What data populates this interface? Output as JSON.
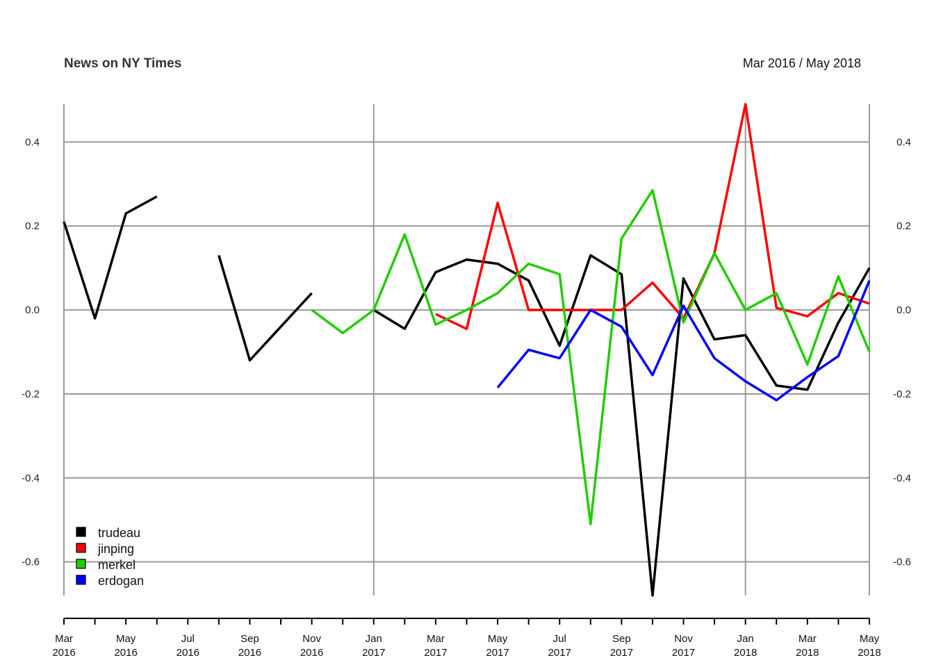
{
  "chart_data": {
    "type": "line",
    "title": "News on NY Times",
    "range_label": "Mar 2016 / May 2018",
    "xlabel": "",
    "ylabel": "",
    "ylim": [
      -0.68,
      0.49
    ],
    "grid": true,
    "legend_position": "bottom-left",
    "x": [
      "2016-03",
      "2016-04",
      "2016-05",
      "2016-06",
      "2016-07",
      "2016-08",
      "2016-09",
      "2016-10",
      "2016-11",
      "2016-12",
      "2017-01",
      "2017-02",
      "2017-03",
      "2017-04",
      "2017-05",
      "2017-06",
      "2017-07",
      "2017-08",
      "2017-09",
      "2017-10",
      "2017-11",
      "2017-12",
      "2018-01",
      "2018-02",
      "2018-03",
      "2018-04",
      "2018-05"
    ],
    "x_major_labels": [
      {
        "month": "Mar",
        "year": "2016",
        "i": 0
      },
      {
        "month": "May",
        "year": "2016",
        "i": 2
      },
      {
        "month": "Jul",
        "year": "2016",
        "i": 4
      },
      {
        "month": "Sep",
        "year": "2016",
        "i": 6
      },
      {
        "month": "Nov",
        "year": "2016",
        "i": 8
      },
      {
        "month": "Jan",
        "year": "2017",
        "i": 10
      },
      {
        "month": "Mar",
        "year": "2017",
        "i": 12
      },
      {
        "month": "May",
        "year": "2017",
        "i": 14
      },
      {
        "month": "Jul",
        "year": "2017",
        "i": 16
      },
      {
        "month": "Sep",
        "year": "2017",
        "i": 18
      },
      {
        "month": "Nov",
        "year": "2017",
        "i": 20
      },
      {
        "month": "Jan",
        "year": "2018",
        "i": 22
      },
      {
        "month": "Mar",
        "year": "2018",
        "i": 24
      },
      {
        "month": "May",
        "year": "2018",
        "i": 26
      }
    ],
    "vertical_grid_at": [
      0,
      10,
      22,
      26
    ],
    "y_ticks": [
      0.4,
      0.2,
      0.0,
      -0.2,
      -0.4,
      -0.6
    ],
    "y_tick_labels": [
      "0.4",
      "0.2",
      "0.0",
      "-0.2",
      "-0.4",
      "-0.6"
    ],
    "series": [
      {
        "name": "trudeau",
        "color": "#000000",
        "values": [
          0.21,
          -0.02,
          0.23,
          0.27,
          null,
          0.13,
          -0.12,
          -0.04,
          0.04,
          null,
          0.0,
          -0.045,
          0.09,
          0.12,
          0.11,
          0.07,
          -0.085,
          0.13,
          0.085,
          -0.68,
          0.075,
          -0.07,
          -0.06,
          -0.18,
          -0.19,
          -0.03,
          0.1
        ]
      },
      {
        "name": "jinping",
        "color": "#ff0000",
        "values": [
          null,
          null,
          null,
          null,
          null,
          null,
          null,
          null,
          null,
          null,
          null,
          null,
          -0.01,
          -0.045,
          0.255,
          0.0,
          0.0,
          0.0,
          0.0,
          0.065,
          -0.02,
          0.135,
          0.49,
          0.005,
          -0.015,
          0.04,
          0.015
        ]
      },
      {
        "name": "merkel",
        "color": "#22cc00",
        "values": [
          null,
          null,
          null,
          null,
          null,
          null,
          null,
          null,
          0.0,
          -0.055,
          0.0,
          0.18,
          -0.035,
          0.0,
          0.04,
          0.11,
          0.085,
          -0.51,
          0.17,
          0.285,
          -0.03,
          0.135,
          0.0,
          0.04,
          -0.13,
          0.08,
          -0.1
        ]
      },
      {
        "name": "erdogan",
        "color": "#0000ff",
        "values": [
          null,
          null,
          null,
          null,
          null,
          null,
          null,
          null,
          null,
          null,
          null,
          null,
          null,
          null,
          -0.185,
          -0.095,
          -0.115,
          0.0,
          -0.04,
          -0.155,
          0.01,
          -0.115,
          -0.17,
          -0.215,
          -0.16,
          -0.11,
          0.07
        ]
      }
    ]
  }
}
